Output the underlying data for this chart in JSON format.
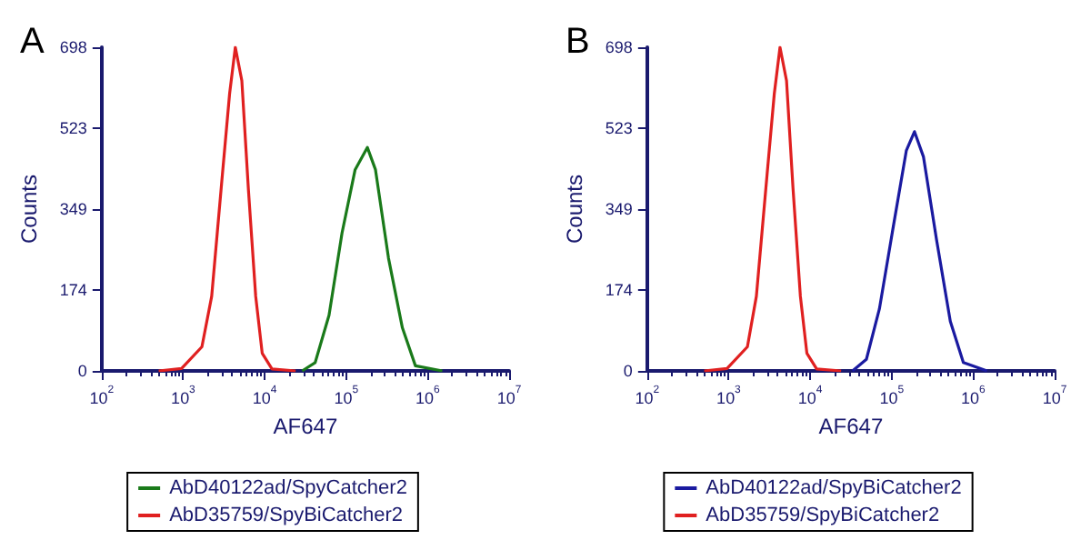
{
  "chart_data": [
    {
      "type": "line",
      "title": "A",
      "xlabel": "AF647",
      "ylabel": "Counts",
      "log": "x",
      "xlim": [
        100,
        10000000
      ],
      "xticks": [
        {
          "value": 100,
          "label": "10$^{2}$"
        },
        {
          "value": 1000,
          "label": "10$^{3}$"
        },
        {
          "value": 10000,
          "label": "10$^{4}$"
        },
        {
          "value": 100000,
          "label": "10$^{5}$"
        },
        {
          "value": 1000000,
          "label": "10$^{6}$"
        },
        {
          "value": 10000000,
          "label": "10$^{7}$"
        }
      ],
      "ylim": [
        0,
        698
      ],
      "yticks": [
        0,
        174,
        349,
        523,
        698
      ],
      "grid": false,
      "legend": "bottom",
      "marker": "none",
      "line_style": "solid",
      "series": [
        {
          "name": "AbD40122ad/SpyCatcher2",
          "color": "#1a7a1a",
          "x": [
            28840,
            41687,
            61660,
            89125,
            128825,
            181970,
            229087,
            331131,
            489779,
            707946,
            1513561
          ],
          "values": [
            0,
            18,
            120,
            298,
            434,
            482,
            434,
            243,
            93,
            11,
            0
          ]
        },
        {
          "name": "AbD35759/SpyBiCatcher2",
          "color": "#e02020",
          "x": [
            501,
            955,
            1698,
            2239,
            3020,
            3715,
            4365,
            5248,
            6310,
            7762,
            9333,
            12303,
            23988
          ],
          "values": [
            0,
            5,
            52,
            161,
            421,
            598,
            698,
            626,
            393,
            161,
            38,
            4,
            0
          ]
        }
      ]
    },
    {
      "type": "line",
      "title": "B",
      "xlabel": "AF647",
      "ylabel": "Counts",
      "log": "x",
      "xlim": [
        100,
        10000000
      ],
      "xticks": [
        {
          "value": 100,
          "label": "10$^{2}$"
        },
        {
          "value": 1000,
          "label": "10$^{3}$"
        },
        {
          "value": 10000,
          "label": "10$^{4}$"
        },
        {
          "value": 100000,
          "label": "10$^{5}$"
        },
        {
          "value": 1000000,
          "label": "10$^{6}$"
        },
        {
          "value": 10000000,
          "label": "10$^{7}$"
        }
      ],
      "ylim": [
        0,
        698
      ],
      "yticks": [
        0,
        174,
        349,
        523,
        698
      ],
      "grid": false,
      "legend": "bottom",
      "marker": "none",
      "line_style": "solid",
      "series": [
        {
          "name": "AbD40122ad/SpyBiCatcher2",
          "color": "#1a1aa0",
          "x": [
            33113,
            48978,
            70795,
            104713,
            151356,
            190546,
            245471,
            354813,
            524807,
            758578,
            1479108
          ],
          "values": [
            0,
            25,
            134,
            311,
            475,
            516,
            462,
            284,
            107,
            18,
            0
          ]
        },
        {
          "name": "AbD35759/SpyBiCatcher2",
          "color": "#e02020",
          "x": [
            501,
            955,
            1698,
            2188,
            2951,
            3631,
            4266,
            5129,
            6166,
            7586,
            9120,
            12023,
            23988
          ],
          "values": [
            0,
            5,
            52,
            161,
            421,
            598,
            698,
            626,
            393,
            161,
            38,
            4,
            0
          ]
        }
      ]
    }
  ]
}
